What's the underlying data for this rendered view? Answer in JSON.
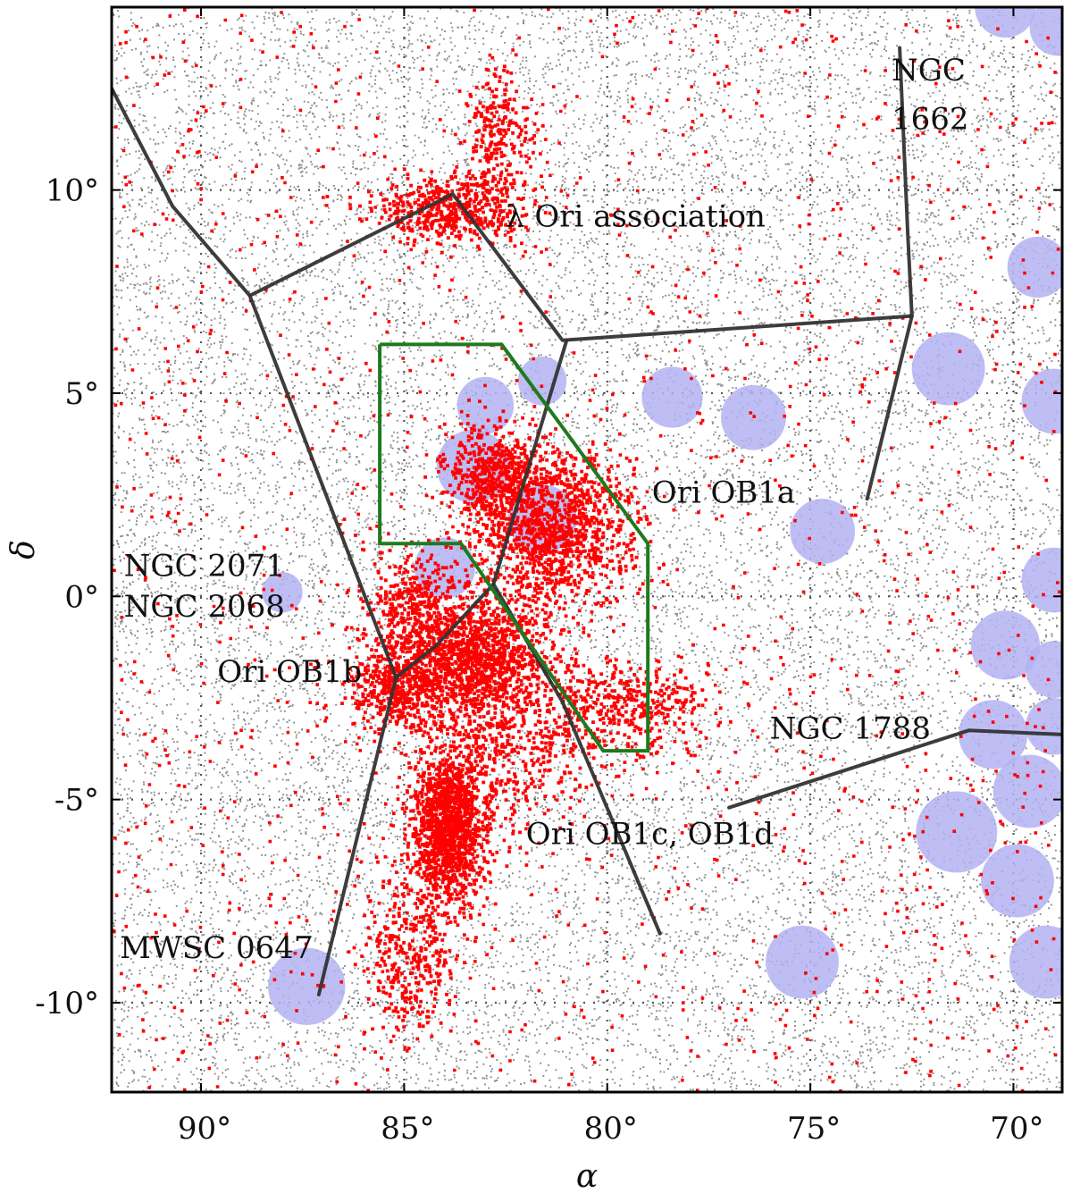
{
  "chart_data": {
    "type": "scatter",
    "title": "",
    "xlabel": "α",
    "ylabel": "δ",
    "xlim": [
      92.2,
      68.8
    ],
    "ylim": [
      -12.2,
      14.5
    ],
    "x_ticks": [
      {
        "value": 90,
        "label": "90°"
      },
      {
        "value": 85,
        "label": "85°"
      },
      {
        "value": 80,
        "label": "80°"
      },
      {
        "value": 75,
        "label": "75°"
      },
      {
        "value": 70,
        "label": "70°"
      }
    ],
    "y_ticks": [
      {
        "value": 10,
        "label": "10°"
      },
      {
        "value": 5,
        "label": "5°"
      },
      {
        "value": 0,
        "label": "0°"
      },
      {
        "value": -5,
        "label": "-5°"
      },
      {
        "value": -10,
        "label": "-10°"
      }
    ],
    "grid": true,
    "colors": {
      "background_stars": "#8c8c8c",
      "members": "#ff0000",
      "masked_regions": "#b3b3f2",
      "constellation_lines": "#333333",
      "selection_polygon": "#1e7a1e"
    },
    "series": [
      {
        "kind": "background",
        "distribution": "uniform"
      },
      {
        "kind": "members",
        "clusters": [
          {
            "ra": 83.9,
            "dec": -5.7,
            "sra": 0.45,
            "sdec": 0.9,
            "weight": 0.16
          },
          {
            "ra": 83.5,
            "dec": -1.5,
            "sra": 1.1,
            "sdec": 0.8,
            "weight": 0.18
          },
          {
            "ra": 81.3,
            "dec": 1.7,
            "sra": 1.0,
            "sdec": 0.9,
            "weight": 0.14
          },
          {
            "ra": 82.8,
            "dec": 3.0,
            "sra": 0.6,
            "sdec": 0.6,
            "weight": 0.06
          },
          {
            "ra": 83.8,
            "dec": 9.5,
            "sra": 0.9,
            "sdec": 0.4,
            "weight": 0.06
          },
          {
            "ra": 82.7,
            "dec": 11.3,
            "sra": 0.4,
            "sdec": 0.8,
            "weight": 0.03
          },
          {
            "ra": 85.2,
            "dec": -2.3,
            "sra": 0.5,
            "sdec": 0.5,
            "weight": 0.04
          },
          {
            "ra": 84.8,
            "dec": -8.8,
            "sra": 0.6,
            "sdec": 1.0,
            "weight": 0.04
          },
          {
            "ra": 84.7,
            "dec": 0.0,
            "sra": 0.6,
            "sdec": 0.6,
            "weight": 0.03
          },
          {
            "ra": 79.8,
            "dec": -2.8,
            "sra": 1.2,
            "sdec": 0.6,
            "weight": 0.05
          },
          {
            "ra": 82.5,
            "dec": -3.8,
            "sra": 1.0,
            "sdec": 1.0,
            "weight": 0.05
          }
        ]
      }
    ],
    "masked_regions": [
      {
        "ra": 70.2,
        "dec": 14.5,
        "r": 0.75
      },
      {
        "ra": 68.9,
        "dec": 14.0,
        "r": 0.7
      },
      {
        "ra": 69.4,
        "dec": 8.1,
        "r": 0.75
      },
      {
        "ra": 71.6,
        "dec": 5.6,
        "r": 0.9
      },
      {
        "ra": 69.0,
        "dec": 4.8,
        "r": 0.8
      },
      {
        "ra": 76.4,
        "dec": 4.4,
        "r": 0.8
      },
      {
        "ra": 78.4,
        "dec": 4.9,
        "r": 0.75
      },
      {
        "ra": 81.6,
        "dec": 5.3,
        "r": 0.6
      },
      {
        "ra": 83.0,
        "dec": 4.7,
        "r": 0.7
      },
      {
        "ra": 83.3,
        "dec": 3.2,
        "r": 0.9
      },
      {
        "ra": 81.6,
        "dec": 1.9,
        "r": 0.85
      },
      {
        "ra": 74.7,
        "dec": 1.6,
        "r": 0.8
      },
      {
        "ra": 84.0,
        "dec": 0.7,
        "r": 0.75
      },
      {
        "ra": 88.0,
        "dec": 0.1,
        "r": 0.5
      },
      {
        "ra": 69.0,
        "dec": 0.4,
        "r": 0.8
      },
      {
        "ra": 70.2,
        "dec": -1.2,
        "r": 0.85
      },
      {
        "ra": 69.0,
        "dec": -1.8,
        "r": 0.7
      },
      {
        "ra": 70.5,
        "dec": -3.4,
        "r": 0.85
      },
      {
        "ra": 69.0,
        "dec": -3.2,
        "r": 0.7
      },
      {
        "ra": 69.6,
        "dec": -4.8,
        "r": 0.9
      },
      {
        "ra": 71.4,
        "dec": -5.8,
        "r": 1.0
      },
      {
        "ra": 69.9,
        "dec": -7.0,
        "r": 0.9
      },
      {
        "ra": 75.2,
        "dec": -9.0,
        "r": 0.9
      },
      {
        "ra": 87.4,
        "dec": -9.6,
        "r": 0.95
      },
      {
        "ra": 69.2,
        "dec": -9.0,
        "r": 0.9
      },
      {
        "ra": 74.3,
        "dec": -12.6,
        "r": 0.4
      }
    ],
    "constellation_lines": [
      [
        [
          92.2,
          12.5
        ],
        [
          90.7,
          9.6
        ],
        [
          88.8,
          7.4
        ],
        [
          83.8,
          9.9
        ],
        [
          81.1,
          6.3
        ],
        [
          72.5,
          6.9
        ]
      ],
      [
        [
          88.8,
          7.4
        ],
        [
          85.2,
          -2.0
        ],
        [
          84.2,
          -1.2
        ],
        [
          82.8,
          0.3
        ],
        [
          81.0,
          6.3
        ]
      ],
      [
        [
          72.8,
          13.5
        ],
        [
          72.6,
          8.9
        ],
        [
          72.5,
          6.9
        ],
        [
          73.6,
          2.4
        ]
      ],
      [
        [
          85.2,
          -2.0
        ],
        [
          87.1,
          -9.8
        ]
      ],
      [
        [
          82.8,
          0.3
        ],
        [
          81.1,
          -2.6
        ],
        [
          78.7,
          -8.3
        ]
      ],
      [
        [
          77.0,
          -5.2
        ],
        [
          71.1,
          -3.3
        ],
        [
          68.8,
          -3.4
        ]
      ]
    ],
    "selection_polygon": [
      [
        85.6,
        6.2
      ],
      [
        82.6,
        6.2
      ],
      [
        79.0,
        1.3
      ],
      [
        79.0,
        -3.8
      ],
      [
        80.1,
        -3.8
      ],
      [
        83.6,
        1.3
      ],
      [
        85.6,
        1.3
      ],
      [
        85.6,
        6.2
      ]
    ],
    "annotations": [
      {
        "text": "λ Ori association",
        "ra": 82.5,
        "dec": 9.1
      },
      {
        "text": "NGC",
        "ra": 73.0,
        "dec": 12.7
      },
      {
        "text": "1662",
        "ra": 73.0,
        "dec": 11.5
      },
      {
        "text": "Ori OB1a",
        "ra": 78.9,
        "dec": 2.3
      },
      {
        "text": "NGC 2071",
        "ra": 91.9,
        "dec": 0.5
      },
      {
        "text": "NGC 2068",
        "ra": 91.9,
        "dec": -0.5
      },
      {
        "text": "Ori OB1b",
        "ra": 89.6,
        "dec": -2.1
      },
      {
        "text": "NGC 1788",
        "ra": 76.0,
        "dec": -3.5
      },
      {
        "text": "Ori OB1c, OB1d",
        "ra": 82.0,
        "dec": -6.1
      },
      {
        "text": "MWSC 0647",
        "ra": 92.0,
        "dec": -8.9
      }
    ]
  }
}
